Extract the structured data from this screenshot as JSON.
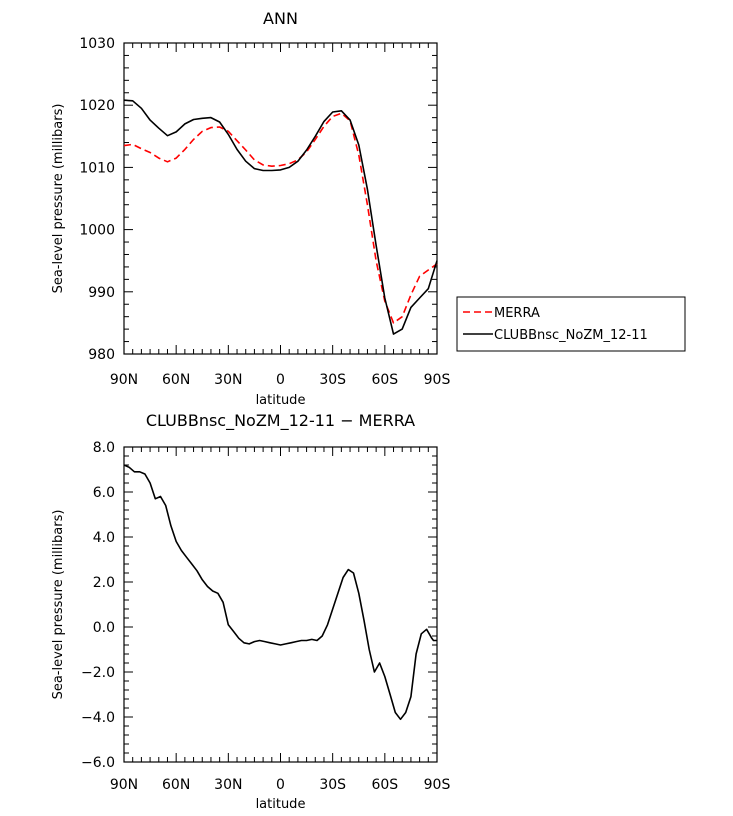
{
  "chart_data": [
    {
      "type": "line",
      "title": "ANN",
      "xlabel": "latitude",
      "ylabel": "Sea-level pressure (millibars)",
      "xlim": [
        90,
        -90
      ],
      "ylim": [
        980,
        1030
      ],
      "x_ticks": [
        90,
        60,
        30,
        0,
        -30,
        -60,
        -90
      ],
      "x_tick_labels": [
        "90N",
        "60N",
        "30N",
        "0",
        "30S",
        "60S",
        "90S"
      ],
      "y_ticks": [
        980,
        990,
        1000,
        1010,
        1020,
        1030
      ],
      "y_tick_labels": [
        "980",
        "990",
        "1000",
        "1010",
        "1020",
        "1030"
      ],
      "legend": {
        "placement": "right"
      },
      "series": [
        {
          "name": "MERRA",
          "color": "#ff0000",
          "dash": "dashed",
          "x": [
            90,
            85,
            80,
            75,
            70,
            65,
            60,
            55,
            50,
            45,
            40,
            35,
            30,
            25,
            20,
            15,
            10,
            5,
            0,
            -5,
            -10,
            -15,
            -20,
            -25,
            -30,
            -35,
            -40,
            -45,
            -50,
            -55,
            -60,
            -65,
            -70,
            -75,
            -80,
            -85,
            -90
          ],
          "y": [
            1013.5,
            1013.7,
            1013.0,
            1012.4,
            1011.5,
            1010.9,
            1011.5,
            1012.9,
            1014.5,
            1015.8,
            1016.4,
            1016.5,
            1015.8,
            1014.3,
            1012.8,
            1011.2,
            1010.4,
            1010.2,
            1010.3,
            1010.6,
            1011.2,
            1012.5,
            1014.5,
            1016.6,
            1018.2,
            1018.7,
            1017.5,
            1012.0,
            1004.0,
            995.0,
            988.5,
            985.0,
            986.0,
            989.5,
            992.5,
            993.5,
            994.5
          ]
        },
        {
          "name": "CLUBBnsc_NoZM_12-11",
          "color": "#000000",
          "dash": "solid",
          "x": [
            90,
            85,
            80,
            75,
            70,
            65,
            60,
            55,
            50,
            45,
            40,
            35,
            30,
            25,
            20,
            15,
            10,
            5,
            0,
            -5,
            -10,
            -15,
            -20,
            -25,
            -30,
            -35,
            -40,
            -45,
            -50,
            -55,
            -60,
            -65,
            -70,
            -75,
            -80,
            -85,
            -90
          ],
          "y": [
            1020.8,
            1020.7,
            1019.5,
            1017.6,
            1016.3,
            1015.1,
            1015.7,
            1017.0,
            1017.7,
            1017.9,
            1018.0,
            1017.3,
            1015.3,
            1012.9,
            1011.0,
            1009.8,
            1009.5,
            1009.5,
            1009.6,
            1010.0,
            1011.0,
            1012.8,
            1015.0,
            1017.4,
            1018.9,
            1019.1,
            1017.6,
            1013.6,
            1006.5,
            997.5,
            989.0,
            983.2,
            984.0,
            987.5,
            989.0,
            990.5,
            995.0
          ]
        }
      ]
    },
    {
      "type": "line",
      "title": "CLUBBnsc_NoZM_12-11 − MERRA",
      "xlabel": "latitude",
      "ylabel": "Sea-level pressure (millibars)",
      "xlim": [
        90,
        -90
      ],
      "ylim": [
        -6,
        8
      ],
      "x_ticks": [
        90,
        60,
        30,
        0,
        -30,
        -60,
        -90
      ],
      "x_tick_labels": [
        "90N",
        "60N",
        "30N",
        "0",
        "30S",
        "60S",
        "90S"
      ],
      "y_ticks": [
        -6,
        -4,
        -2,
        0,
        2,
        4,
        6,
        8
      ],
      "y_tick_labels": [
        "−6.0",
        "−4.0",
        "−2.0",
        "0.0",
        "2.0",
        "4.0",
        "6.0",
        "8.0"
      ],
      "series": [
        {
          "color": "#000000",
          "dash": "solid",
          "x": [
            90,
            87,
            84,
            81,
            78,
            75,
            72,
            69,
            66,
            63,
            60,
            57,
            54,
            51,
            48,
            45,
            42,
            39,
            36,
            33,
            30,
            27,
            24,
            21,
            18,
            15,
            12,
            9,
            6,
            3,
            0,
            -3,
            -6,
            -9,
            -12,
            -15,
            -18,
            -21,
            -24,
            -27,
            -30,
            -33,
            -36,
            -39,
            -42,
            -45,
            -48,
            -51,
            -54,
            -57,
            -60,
            -63,
            -66,
            -69,
            -72,
            -75,
            -78,
            -81,
            -84,
            -87,
            -88,
            -89,
            -90
          ],
          "y": [
            7.2,
            7.1,
            6.9,
            6.9,
            6.8,
            6.4,
            5.7,
            5.8,
            5.4,
            4.5,
            3.8,
            3.4,
            3.1,
            2.8,
            2.5,
            2.1,
            1.8,
            1.6,
            1.5,
            1.1,
            0.1,
            -0.2,
            -0.5,
            -0.7,
            -0.75,
            -0.65,
            -0.6,
            -0.65,
            -0.7,
            -0.75,
            -0.8,
            -0.75,
            -0.7,
            -0.65,
            -0.6,
            -0.6,
            -0.55,
            -0.6,
            -0.4,
            0.1,
            0.8,
            1.5,
            2.2,
            2.55,
            2.4,
            1.5,
            0.3,
            -1.0,
            -2.0,
            -1.6,
            -2.2,
            -3.0,
            -3.8,
            -4.1,
            -3.8,
            -3.1,
            -1.2,
            -0.3,
            -0.1,
            -0.5,
            -0.6,
            -0.6,
            -0.6
          ]
        }
      ]
    }
  ]
}
